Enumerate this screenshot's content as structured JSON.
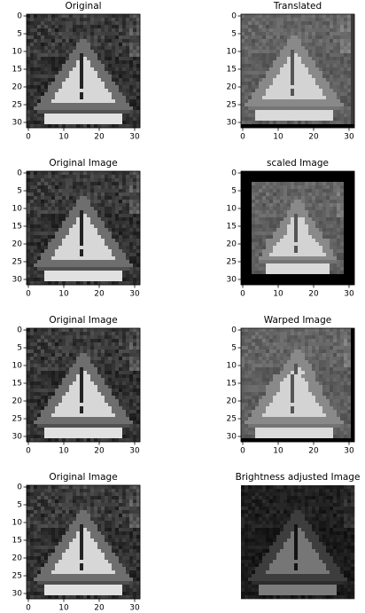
{
  "chart_data": [
    {
      "type": "image",
      "title": "Original",
      "xlim": [
        -0.5,
        31.5
      ],
      "ylim": [
        31.5,
        -0.5
      ],
      "xticks": [
        0,
        10,
        20,
        30
      ],
      "yticks": [
        0,
        5,
        10,
        15,
        20,
        25,
        30
      ]
    },
    {
      "type": "image",
      "title": "Translated",
      "xlim": [
        -0.5,
        31.5
      ],
      "ylim": [
        31.5,
        -0.5
      ],
      "xticks": [
        0,
        10,
        20,
        30
      ],
      "yticks": [
        0,
        5,
        10,
        15,
        20,
        25,
        30
      ]
    },
    {
      "type": "image",
      "title": "Original Image",
      "xlim": [
        -0.5,
        31.5
      ],
      "ylim": [
        31.5,
        -0.5
      ],
      "xticks": [
        0,
        10,
        20,
        30
      ],
      "yticks": [
        0,
        5,
        10,
        15,
        20,
        25,
        30
      ]
    },
    {
      "type": "image",
      "title": "scaled Image",
      "xlim": [
        -0.5,
        31.5
      ],
      "ylim": [
        31.5,
        -0.5
      ],
      "xticks": [
        0,
        10,
        20,
        30
      ],
      "yticks": [
        0,
        5,
        10,
        15,
        20,
        25,
        30
      ]
    },
    {
      "type": "image",
      "title": "Original Image",
      "xlim": [
        -0.5,
        31.5
      ],
      "ylim": [
        31.5,
        -0.5
      ],
      "xticks": [
        0,
        10,
        20,
        30
      ],
      "yticks": [
        0,
        5,
        10,
        15,
        20,
        25,
        30
      ]
    },
    {
      "type": "image",
      "title": "Warped Image",
      "xlim": [
        -0.5,
        31.5
      ],
      "ylim": [
        31.5,
        -0.5
      ],
      "xticks": [
        0,
        10,
        20,
        30
      ],
      "yticks": [
        0,
        5,
        10,
        15,
        20,
        25,
        30
      ]
    },
    {
      "type": "image",
      "title": "Original Image",
      "xlim": [
        -0.5,
        31.5
      ],
      "ylim": [
        31.5,
        -0.5
      ],
      "xticks": [
        0,
        10,
        20,
        30
      ],
      "yticks": [
        0,
        5,
        10,
        15,
        20,
        25,
        30
      ]
    },
    {
      "type": "image",
      "title": "Brightness adjusted Image"
    }
  ]
}
